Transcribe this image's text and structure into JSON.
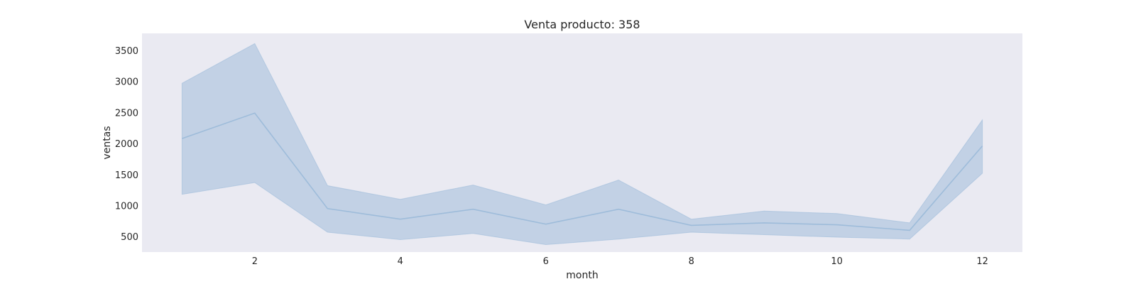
{
  "chart_data": {
    "type": "line",
    "title": "Venta producto: 358",
    "xlabel": "month",
    "ylabel": "ventas",
    "x": [
      1,
      2,
      3,
      4,
      5,
      6,
      7,
      8,
      9,
      10,
      11,
      12
    ],
    "series": [
      {
        "values": [
          2080,
          2490,
          950,
          780,
          940,
          700,
          940,
          680,
          720,
          690,
          600,
          1960
        ],
        "ci_lower": [
          1180,
          1370,
          570,
          450,
          550,
          370,
          460,
          570,
          530,
          490,
          460,
          1520
        ],
        "ci_upper": [
          2970,
          3610,
          1320,
          1100,
          1330,
          1010,
          1410,
          780,
          910,
          870,
          720,
          2380
        ]
      }
    ],
    "xticks": [
      2,
      4,
      6,
      8,
      10,
      12
    ],
    "yticks": [
      500,
      1000,
      1500,
      2000,
      2500,
      3000,
      3500
    ],
    "xlim": [
      0.45,
      12.55
    ],
    "ylim": [
      250,
      3775
    ],
    "grid": false,
    "colors": {
      "background": "#eaeaf2",
      "line": "#9ebcda",
      "band": "#b4c8e0"
    }
  }
}
